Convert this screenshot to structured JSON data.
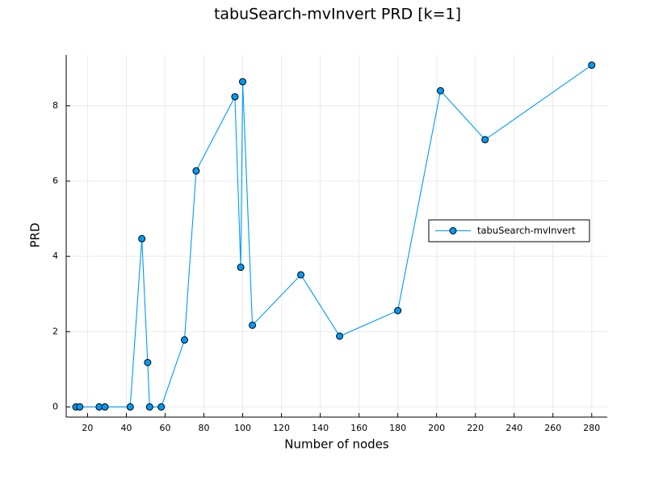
{
  "chart_data": {
    "type": "line",
    "title": "tabuSearch-mvInvert PRD [k=1]",
    "xlabel": "Number of nodes",
    "ylabel": "PRD",
    "xlim": [
      9,
      288
    ],
    "ylim": [
      -0.27,
      9.35
    ],
    "xticks": [
      20,
      40,
      60,
      80,
      100,
      120,
      140,
      160,
      180,
      200,
      220,
      240,
      260,
      280
    ],
    "yticks": [
      0,
      2,
      4,
      6,
      8
    ],
    "grid": true,
    "legend_position": "right",
    "series": [
      {
        "name": "tabuSearch-mvInvert",
        "color": "#009af9",
        "marker": "circle",
        "x": [
          14,
          16,
          26,
          29,
          42,
          48,
          51,
          52,
          58,
          70,
          76,
          96,
          99,
          100,
          105,
          130,
          150,
          180,
          202,
          225,
          280
        ],
        "y": [
          0,
          0,
          0,
          0,
          0,
          4.47,
          1.18,
          0,
          0,
          1.78,
          6.27,
          8.24,
          3.71,
          8.64,
          2.17,
          3.51,
          1.88,
          2.56,
          8.4,
          7.1,
          9.08
        ]
      }
    ]
  }
}
